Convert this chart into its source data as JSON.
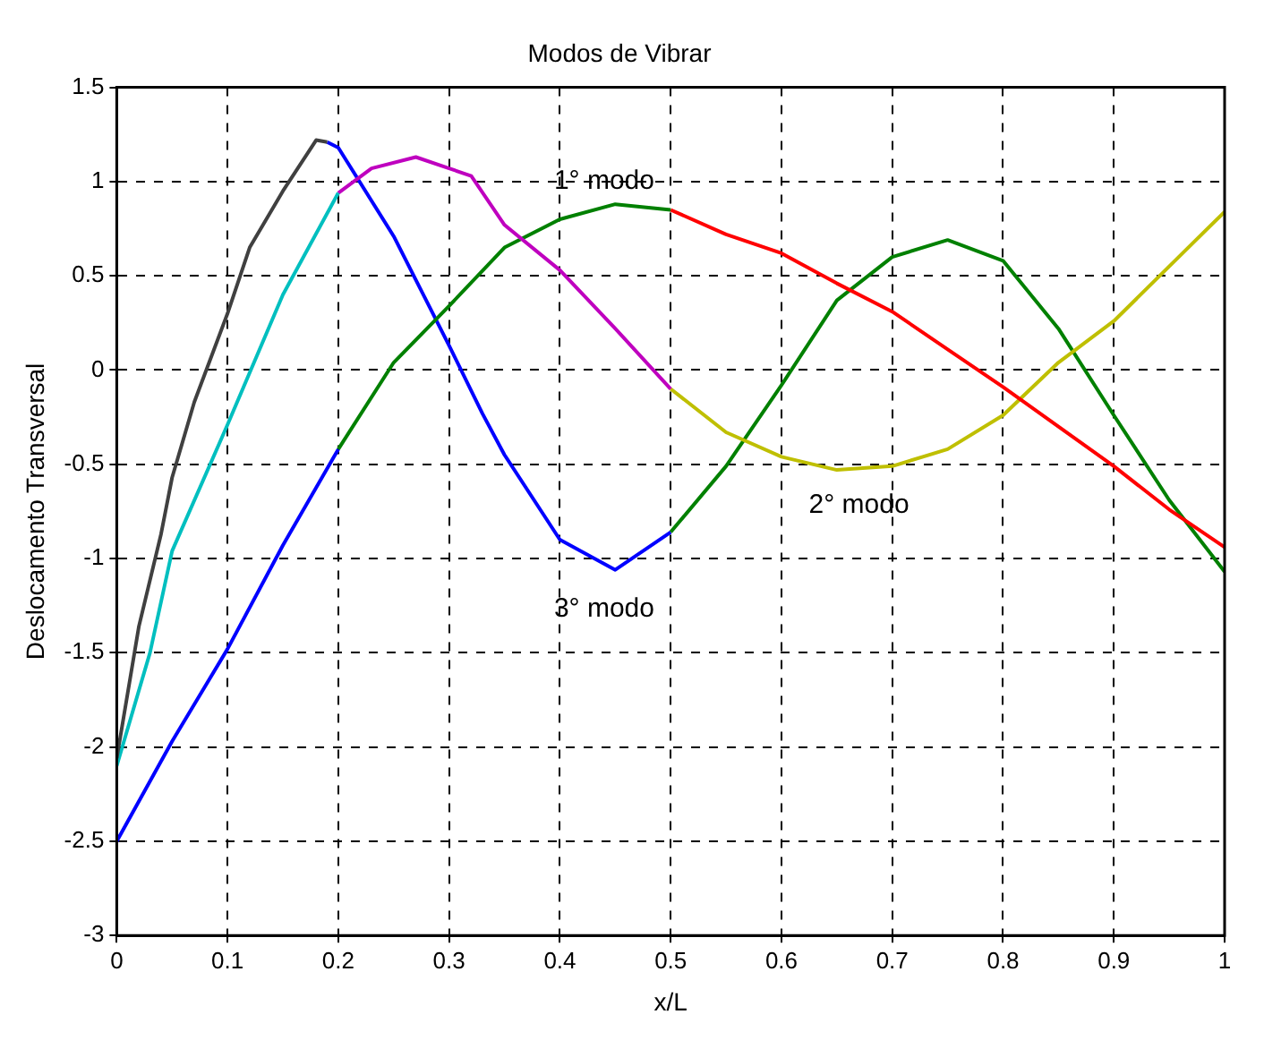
{
  "chart_data": {
    "type": "line",
    "title": "Modos de Vibrar",
    "xlabel": "x/L",
    "ylabel": "Deslocamento Transversal",
    "xlim": [
      0,
      1
    ],
    "xticks": [
      0,
      0.1,
      0.2,
      0.3,
      0.4,
      0.5,
      0.6,
      0.7,
      0.8,
      0.9,
      1
    ],
    "ylim": [
      -3,
      1.5
    ],
    "yticks": [
      -3,
      -2.5,
      -2,
      -1.5,
      -1,
      -0.5,
      0,
      0.5,
      1,
      1.5
    ],
    "grid": true,
    "line_style": "solid",
    "series": [
      {
        "color": "#404040",
        "x": [
          0,
          0.02,
          0.04,
          0.05,
          0.07,
          0.1,
          0.12,
          0.15,
          0.18,
          0.19
        ],
        "values": [
          -2.06,
          -1.36,
          -0.87,
          -0.57,
          -0.17,
          0.3,
          0.65,
          0.95,
          1.22,
          1.21
        ]
      },
      {
        "color": "#00bfbf",
        "x": [
          0,
          0.03,
          0.05,
          0.1,
          0.15,
          0.2
        ],
        "values": [
          -2.1,
          -1.5,
          -0.96,
          -0.29,
          0.4,
          0.94
        ]
      },
      {
        "color": "#0000ff",
        "x": [
          0,
          0.05,
          0.1,
          0.15,
          0.2
        ],
        "values": [
          -2.5,
          -1.97,
          -1.48,
          -0.93,
          -0.42
        ]
      },
      {
        "color": "#bf00bf",
        "x": [
          0.2,
          0.23,
          0.27,
          0.3,
          0.32,
          0.35,
          0.4,
          0.45,
          0.5
        ],
        "values": [
          0.94,
          1.07,
          1.13,
          1.07,
          1.03,
          0.77,
          0.53,
          0.22,
          -0.1
        ]
      },
      {
        "color": "#008000",
        "x": [
          0.2,
          0.25,
          0.3,
          0.35,
          0.4,
          0.45,
          0.5
        ],
        "values": [
          -0.42,
          0.04,
          0.34,
          0.65,
          0.8,
          0.88,
          0.85
        ]
      },
      {
        "color": "#0000ff",
        "x": [
          0.19,
          0.2,
          0.25,
          0.3,
          0.33,
          0.35,
          0.4,
          0.45,
          0.5
        ],
        "values": [
          1.21,
          1.18,
          0.71,
          0.13,
          -0.23,
          -0.45,
          -0.9,
          -1.06,
          -0.86
        ]
      },
      {
        "color": "#ff0000",
        "x": [
          0.5,
          0.55,
          0.6,
          0.65,
          0.7,
          0.75,
          0.8,
          0.85,
          0.9,
          0.95,
          1
        ],
        "values": [
          0.85,
          0.72,
          0.62,
          0.46,
          0.31,
          0.11,
          -0.09,
          -0.3,
          -0.51,
          -0.74,
          -0.94
        ]
      },
      {
        "color": "#bfbf00",
        "x": [
          0.5,
          0.55,
          0.6,
          0.65,
          0.7,
          0.75,
          0.8,
          0.85,
          0.9,
          0.95,
          1
        ],
        "values": [
          -0.1,
          -0.33,
          -0.46,
          -0.53,
          -0.51,
          -0.42,
          -0.24,
          0.04,
          0.26,
          0.55,
          0.84
        ]
      },
      {
        "color": "#008000",
        "x": [
          0.5,
          0.55,
          0.6,
          0.65,
          0.7,
          0.75,
          0.8,
          0.85,
          0.9,
          0.95,
          1
        ],
        "values": [
          -0.86,
          -0.51,
          -0.08,
          0.37,
          0.6,
          0.69,
          0.58,
          0.22,
          -0.24,
          -0.69,
          -1.07
        ]
      }
    ],
    "annotations": [
      "1° modo",
      "2° modo",
      "3° modo"
    ]
  }
}
